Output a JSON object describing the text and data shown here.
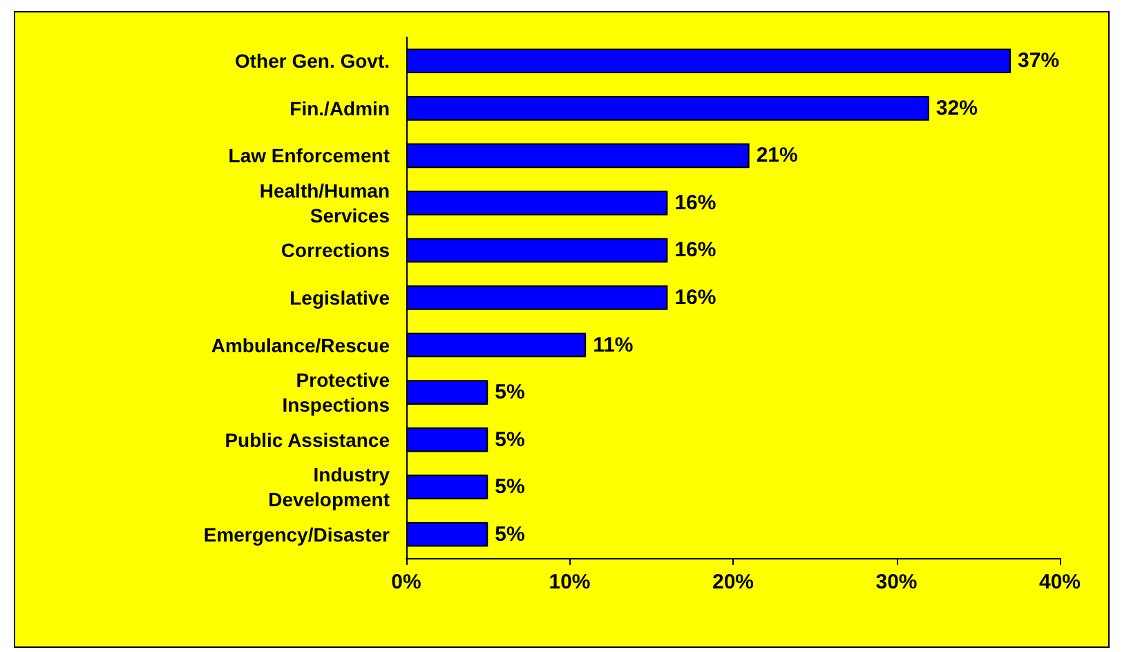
{
  "chart_data": {
    "type": "bar",
    "orientation": "horizontal",
    "categories": [
      "Other Gen. Govt.",
      "Fin./Admin",
      "Law Enforcement",
      "Health/Human\nServices",
      "Corrections",
      "Legislative",
      "Ambulance/Rescue",
      "Protective\nInspections",
      "Public Assistance",
      "Industry\nDevelopment",
      "Emergency/Disaster"
    ],
    "values": [
      37,
      32,
      21,
      16,
      16,
      16,
      11,
      5,
      5,
      5,
      5
    ],
    "value_labels": [
      "37%",
      "32%",
      "21%",
      "16%",
      "16%",
      "16%",
      "11%",
      "5%",
      "5%",
      "5%",
      "5%"
    ],
    "color": "#0000ff",
    "xlim": [
      0,
      40
    ],
    "xticks": [
      {
        "value": 0,
        "label": "0%"
      },
      {
        "value": 10,
        "label": "10%"
      },
      {
        "value": 20,
        "label": "20%"
      },
      {
        "value": 30,
        "label": "30%"
      },
      {
        "value": 40,
        "label": "40%"
      }
    ],
    "grid": false
  }
}
